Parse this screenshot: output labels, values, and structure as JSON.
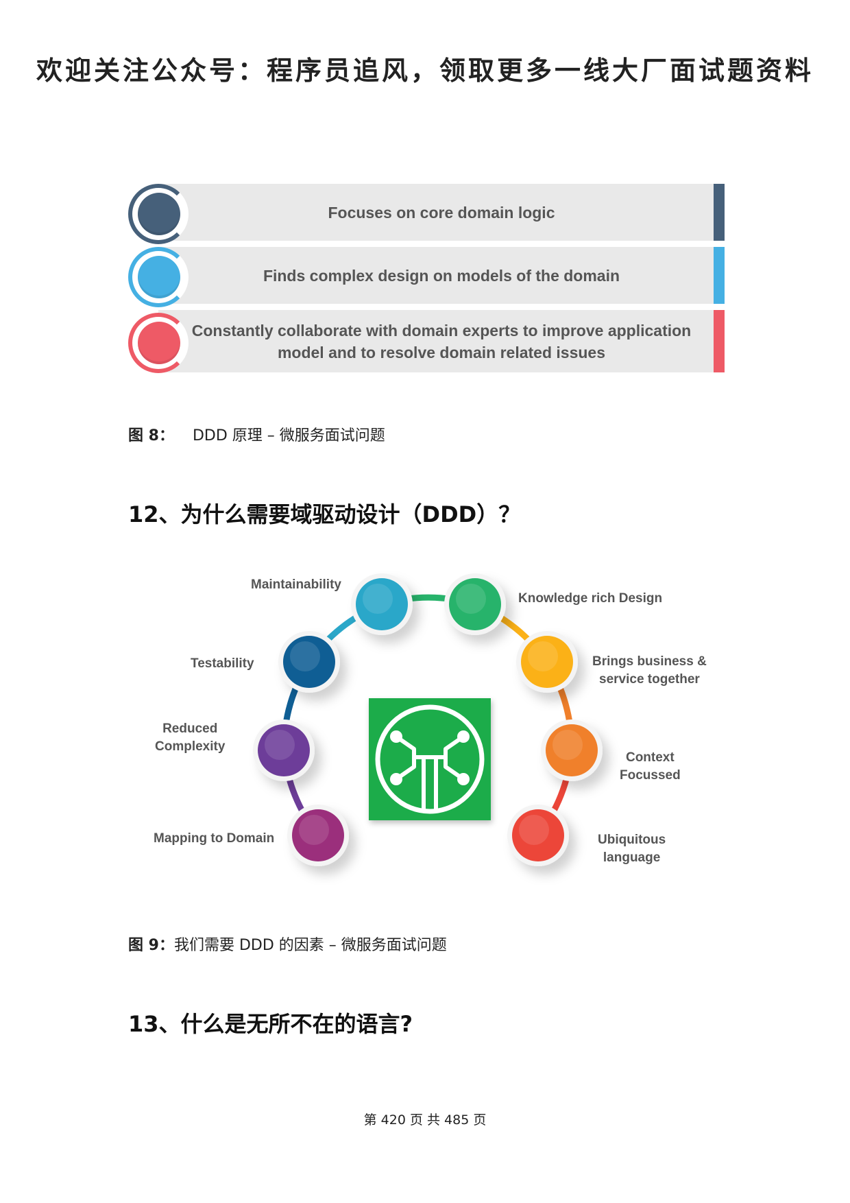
{
  "banner": "欢迎关注公众号：程序员追风，领取更多一线大厂面试题资料",
  "figure8": {
    "rows": [
      {
        "text_lines": [
          "Focuses on core domain logic"
        ],
        "color": "#46607a"
      },
      {
        "text_lines": [
          "Finds complex design on models of the domain"
        ],
        "color": "#45b0e3"
      },
      {
        "text_lines": [
          "Constantly collaborate with domain experts to improve application",
          "model and to resolve domain related issues"
        ],
        "color": "#ee5a66"
      }
    ],
    "caption_label": "图 8：",
    "caption_text": "DDD 原理 – 微服务面试问题"
  },
  "section12": {
    "heading": "12、为什么需要域驱动设计（DDD）？"
  },
  "figure9": {
    "nodes": [
      {
        "label_lines": [
          "Maintainability"
        ],
        "color": "#2aa7c9"
      },
      {
        "label_lines": [
          "Knowledge rich Design"
        ],
        "color": "#27b36b"
      },
      {
        "label_lines": [
          "Testability"
        ],
        "color": "#0f5e94"
      },
      {
        "label_lines": [
          "Brings  business &",
          "service together"
        ],
        "color": "#fbb117"
      },
      {
        "label_lines": [
          "Reduced",
          "Complexity"
        ],
        "color": "#6d3d99"
      },
      {
        "label_lines": [
          "Context",
          "Focussed"
        ],
        "color": "#f0802b"
      },
      {
        "label_lines": [
          "Mapping to Domain"
        ],
        "color": "#9b2f7c"
      },
      {
        "label_lines": [
          "Ubiquitous",
          "language"
        ],
        "color": "#ec4639"
      }
    ],
    "logo_color": "#1cac4a",
    "caption_label": "图 9：",
    "caption_text": "我们需要 DDD 的因素 – 微服务面试问题"
  },
  "section13": {
    "heading": "13、什么是无所不在的语言?"
  },
  "footer": {
    "page_text": "第 420 页 共 485 页"
  }
}
